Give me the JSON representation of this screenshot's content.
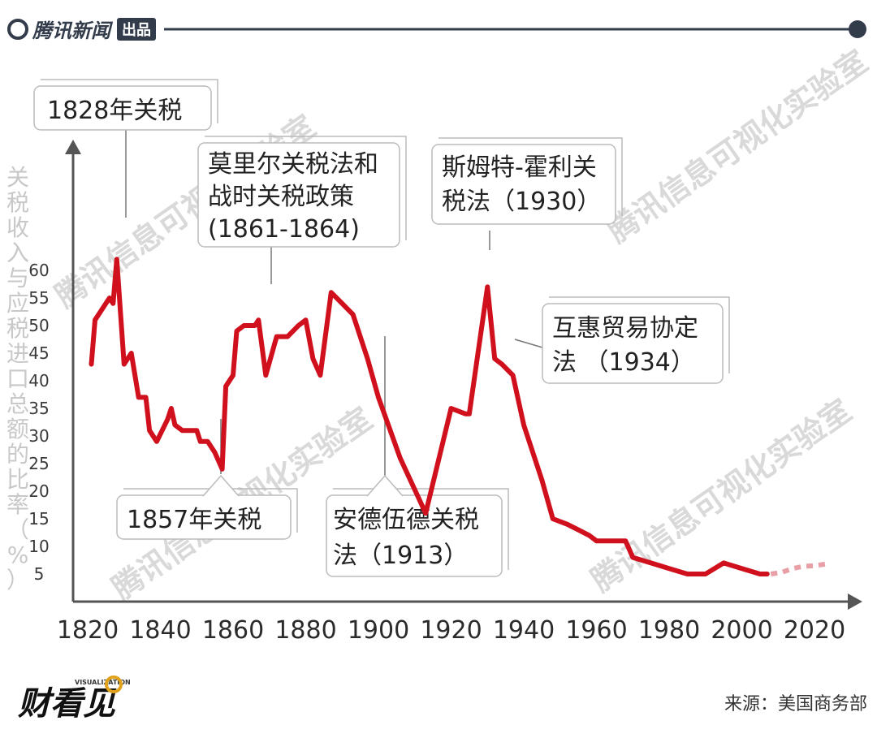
{
  "header": {
    "brand": "腾讯新闻",
    "badge": "出品"
  },
  "footer": {
    "logo_text": "财看见",
    "logo_sub": "VISUALIZATION",
    "source": "来源：美国商务部"
  },
  "watermark": "腾讯信息可视化实验室",
  "colors": {
    "line": "#d0101c",
    "axis": "#555555",
    "dotted": "#e8a0a6",
    "dark": "#333c4a"
  },
  "chart_data": {
    "type": "line",
    "title": "",
    "xlabel": "",
    "ylabel": "关税收入与应税进口总额的比率（%）",
    "x_ticks": [
      "1820",
      "1840",
      "1860",
      "1880",
      "1900",
      "1920",
      "1940",
      "1960",
      "1980",
      "2000",
      "2020"
    ],
    "y_ticks": [
      "5",
      "10",
      "15",
      "20",
      "25",
      "30",
      "35",
      "40",
      "45",
      "50",
      "55",
      "60"
    ],
    "xlim": [
      1820,
      2020
    ],
    "ylim": [
      0,
      65
    ],
    "series": [
      {
        "style": "solid",
        "points": [
          [
            1821,
            43
          ],
          [
            1822,
            51
          ],
          [
            1824,
            53
          ],
          [
            1826,
            55
          ],
          [
            1827,
            54
          ],
          [
            1828,
            62
          ],
          [
            1830,
            43
          ],
          [
            1832,
            45
          ],
          [
            1834,
            37
          ],
          [
            1836,
            37
          ],
          [
            1837,
            31
          ],
          [
            1839,
            29
          ],
          [
            1842,
            33
          ],
          [
            1843,
            35
          ],
          [
            1844,
            32
          ],
          [
            1846,
            31
          ],
          [
            1848,
            31
          ],
          [
            1850,
            31
          ],
          [
            1851,
            29
          ],
          [
            1853,
            29
          ],
          [
            1855,
            27
          ],
          [
            1857,
            24
          ],
          [
            1858,
            39
          ],
          [
            1860,
            41
          ],
          [
            1861,
            49
          ],
          [
            1863,
            50
          ],
          [
            1866,
            50
          ],
          [
            1867,
            51
          ],
          [
            1869,
            41
          ],
          [
            1872,
            48
          ],
          [
            1875,
            48
          ],
          [
            1878,
            50
          ],
          [
            1880,
            51
          ],
          [
            1882,
            44
          ],
          [
            1884,
            41
          ],
          [
            1887,
            56
          ],
          [
            1890,
            54
          ],
          [
            1893,
            52
          ],
          [
            1897,
            44
          ],
          [
            1900,
            37
          ],
          [
            1906,
            26
          ],
          [
            1913,
            16
          ],
          [
            1920,
            35
          ],
          [
            1924,
            34
          ],
          [
            1925,
            34
          ],
          [
            1930,
            57
          ],
          [
            1932,
            44
          ],
          [
            1934,
            43
          ],
          [
            1937,
            41
          ],
          [
            1940,
            32
          ],
          [
            1945,
            22
          ],
          [
            1948,
            15
          ],
          [
            1952,
            14
          ],
          [
            1955,
            13
          ],
          [
            1958,
            12
          ],
          [
            1960,
            11
          ],
          [
            1964,
            11
          ],
          [
            1968,
            11
          ],
          [
            1970,
            8
          ],
          [
            1975,
            7
          ],
          [
            1980,
            6
          ],
          [
            1985,
            5
          ],
          [
            1990,
            5
          ],
          [
            1995,
            7
          ],
          [
            2000,
            6
          ],
          [
            2005,
            5
          ],
          [
            2007,
            5
          ]
        ]
      },
      {
        "style": "dotted",
        "points": [
          [
            2008,
            5
          ],
          [
            2011,
            5.3
          ],
          [
            2014,
            6
          ],
          [
            2017,
            6.4
          ],
          [
            2020,
            6.5
          ],
          [
            2023,
            6.8
          ]
        ]
      }
    ],
    "annotations": [
      {
        "lines": [
          "1828年关税"
        ]
      },
      {
        "lines": [
          "莫里尔关税法和",
          "战时关税政策",
          "(1861-1864)"
        ]
      },
      {
        "lines": [
          "斯姆特-霍利关",
          "税法（1930）"
        ]
      },
      {
        "lines": [
          "互惠贸易协定",
          "法 （1934）"
        ]
      },
      {
        "lines": [
          "1857年关税"
        ]
      },
      {
        "lines": [
          "安德伍德关税",
          "法（1913）"
        ]
      }
    ]
  }
}
